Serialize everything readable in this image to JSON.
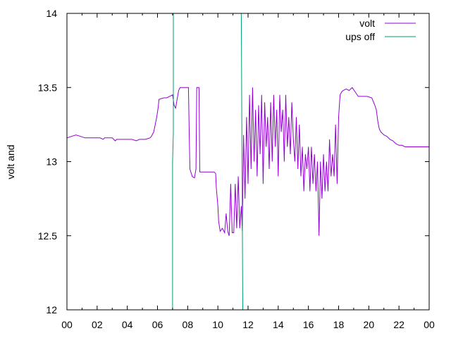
{
  "chart_data": {
    "type": "line",
    "title": "",
    "xlabel": "",
    "ylabel": "volt and",
    "xlim": [
      0,
      24
    ],
    "ylim": [
      12,
      14
    ],
    "xticks": [
      "00",
      "02",
      "04",
      "06",
      "08",
      "10",
      "12",
      "14",
      "16",
      "18",
      "20",
      "22",
      "00"
    ],
    "yticks": [
      "12",
      "12.5",
      "13",
      "13.5",
      "14"
    ],
    "grid": false,
    "legend_position": "top-right",
    "series": [
      {
        "name": "volt",
        "color": "#9400d3",
        "points": [
          [
            0.0,
            13.16
          ],
          [
            0.3,
            13.17
          ],
          [
            0.6,
            13.18
          ],
          [
            0.9,
            13.17
          ],
          [
            1.2,
            13.16
          ],
          [
            1.7,
            13.16
          ],
          [
            2.2,
            13.16
          ],
          [
            2.4,
            13.15
          ],
          [
            2.5,
            13.16
          ],
          [
            3.0,
            13.16
          ],
          [
            3.2,
            13.14
          ],
          [
            3.3,
            13.15
          ],
          [
            3.8,
            13.15
          ],
          [
            4.3,
            13.15
          ],
          [
            4.6,
            13.14
          ],
          [
            4.8,
            13.15
          ],
          [
            5.2,
            13.15
          ],
          [
            5.5,
            13.16
          ],
          [
            5.6,
            13.17
          ],
          [
            5.75,
            13.2
          ],
          [
            5.85,
            13.25
          ],
          [
            5.95,
            13.3
          ],
          [
            6.05,
            13.37
          ],
          [
            6.1,
            13.42
          ],
          [
            6.4,
            13.43
          ],
          [
            6.6,
            13.43
          ],
          [
            6.8,
            13.44
          ],
          [
            7.0,
            13.45
          ],
          [
            7.1,
            13.38
          ],
          [
            7.2,
            13.36
          ],
          [
            7.3,
            13.42
          ],
          [
            7.4,
            13.48
          ],
          [
            7.5,
            13.5
          ],
          [
            7.8,
            13.5
          ],
          [
            8.05,
            13.5
          ],
          [
            8.1,
            13.2
          ],
          [
            8.15,
            12.95
          ],
          [
            8.3,
            12.9
          ],
          [
            8.45,
            12.89
          ],
          [
            8.55,
            12.95
          ],
          [
            8.6,
            13.5
          ],
          [
            8.75,
            13.5
          ],
          [
            8.8,
            12.93
          ],
          [
            9.2,
            12.93
          ],
          [
            9.5,
            12.93
          ],
          [
            9.75,
            12.93
          ],
          [
            9.85,
            12.92
          ],
          [
            9.9,
            12.82
          ],
          [
            10.0,
            12.7
          ],
          [
            10.05,
            12.6
          ],
          [
            10.15,
            12.53
          ],
          [
            10.3,
            12.55
          ],
          [
            10.45,
            12.52
          ],
          [
            10.55,
            12.65
          ],
          [
            10.65,
            12.53
          ],
          [
            10.75,
            12.5
          ],
          [
            10.85,
            12.85
          ],
          [
            10.95,
            12.52
          ],
          [
            11.05,
            12.52
          ],
          [
            11.15,
            12.85
          ],
          [
            11.25,
            12.55
          ],
          [
            11.35,
            12.9
          ],
          [
            11.45,
            12.55
          ],
          [
            11.55,
            12.7
          ],
          [
            11.62,
            12.53
          ],
          [
            11.7,
            13.18
          ],
          [
            11.8,
            12.75
          ],
          [
            11.9,
            13.3
          ],
          [
            12.0,
            12.85
          ],
          [
            12.1,
            13.45
          ],
          [
            12.2,
            12.95
          ],
          [
            12.3,
            13.5
          ],
          [
            12.4,
            13.0
          ],
          [
            12.5,
            13.35
          ],
          [
            12.6,
            12.9
          ],
          [
            12.7,
            13.38
          ],
          [
            12.8,
            13.05
          ],
          [
            12.9,
            13.45
          ],
          [
            13.0,
            12.85
          ],
          [
            13.1,
            13.4
          ],
          [
            13.2,
            13.1
          ],
          [
            13.3,
            13.3
          ],
          [
            13.4,
            12.95
          ],
          [
            13.5,
            13.4
          ],
          [
            13.6,
            13.0
          ],
          [
            13.7,
            13.45
          ],
          [
            13.8,
            13.1
          ],
          [
            13.9,
            13.35
          ],
          [
            14.0,
            12.9
          ],
          [
            14.1,
            13.45
          ],
          [
            14.2,
            13.2
          ],
          [
            14.3,
            13.35
          ],
          [
            14.4,
            13.0
          ],
          [
            14.5,
            13.45
          ],
          [
            14.6,
            13.1
          ],
          [
            14.7,
            13.3
          ],
          [
            14.8,
            13.05
          ],
          [
            14.9,
            13.4
          ],
          [
            15.0,
            13.15
          ],
          [
            15.1,
            13.0
          ],
          [
            15.2,
            13.3
          ],
          [
            15.3,
            12.95
          ],
          [
            15.4,
            13.25
          ],
          [
            15.5,
            12.9
          ],
          [
            15.6,
            13.1
          ],
          [
            15.7,
            12.8
          ],
          [
            15.8,
            13.05
          ],
          [
            15.9,
            12.95
          ],
          [
            16.0,
            13.1
          ],
          [
            16.1,
            12.8
          ],
          [
            16.2,
            13.1
          ],
          [
            16.3,
            12.85
          ],
          [
            16.4,
            13.05
          ],
          [
            16.5,
            12.8
          ],
          [
            16.6,
            13.0
          ],
          [
            16.7,
            12.5
          ],
          [
            16.8,
            13.0
          ],
          [
            16.9,
            12.75
          ],
          [
            17.0,
            13.05
          ],
          [
            17.1,
            12.8
          ],
          [
            17.2,
            13.0
          ],
          [
            17.3,
            12.8
          ],
          [
            17.4,
            13.15
          ],
          [
            17.5,
            12.9
          ],
          [
            17.6,
            13.05
          ],
          [
            17.7,
            12.9
          ],
          [
            17.8,
            13.25
          ],
          [
            17.9,
            12.85
          ],
          [
            18.0,
            13.3
          ],
          [
            18.1,
            13.45
          ],
          [
            18.2,
            13.47
          ],
          [
            18.3,
            13.48
          ],
          [
            18.5,
            13.49
          ],
          [
            18.7,
            13.48
          ],
          [
            18.9,
            13.5
          ],
          [
            19.1,
            13.47
          ],
          [
            19.3,
            13.44
          ],
          [
            19.6,
            13.44
          ],
          [
            19.9,
            13.44
          ],
          [
            20.2,
            13.43
          ],
          [
            20.4,
            13.38
          ],
          [
            20.5,
            13.35
          ],
          [
            20.6,
            13.27
          ],
          [
            20.7,
            13.22
          ],
          [
            20.8,
            13.2
          ],
          [
            21.0,
            13.18
          ],
          [
            21.2,
            13.17
          ],
          [
            21.4,
            13.15
          ],
          [
            21.6,
            13.14
          ],
          [
            21.8,
            13.12
          ],
          [
            22.0,
            13.11
          ],
          [
            22.2,
            13.11
          ],
          [
            22.4,
            13.1
          ],
          [
            22.7,
            13.1
          ],
          [
            23.0,
            13.1
          ],
          [
            23.5,
            13.1
          ],
          [
            24.0,
            13.1
          ]
        ]
      },
      {
        "name": "ups off",
        "color": "#009e73",
        "points": [
          [
            7.0,
            12.0
          ],
          [
            7.0,
            13.0
          ],
          [
            7.05,
            13.2
          ],
          [
            7.05,
            14.0
          ],
          [
            11.55,
            14.0
          ],
          [
            11.65,
            12.0
          ]
        ]
      }
    ]
  }
}
